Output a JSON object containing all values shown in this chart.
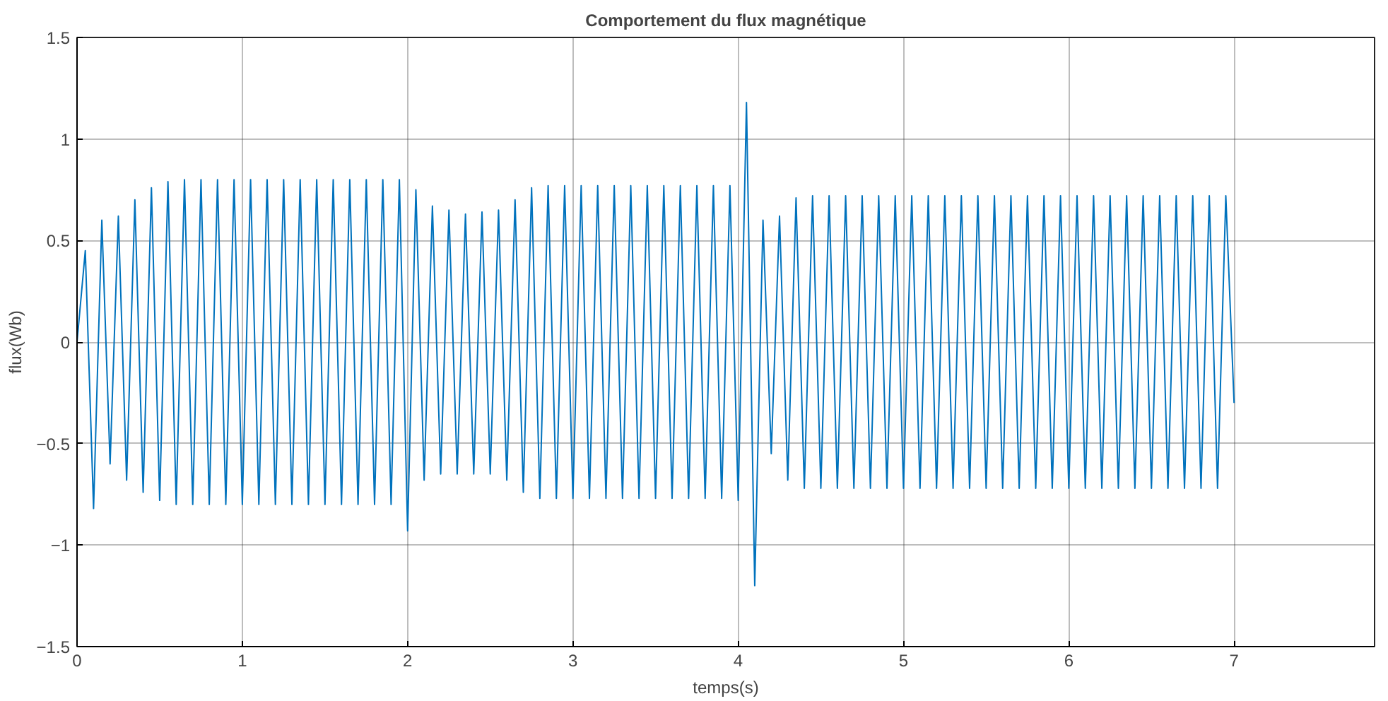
{
  "chart_data": {
    "type": "line",
    "title": "Comportement du flux magnétique",
    "xlabel": "temps(s)",
    "ylabel": "flux(Wb)",
    "xlim": [
      0,
      7.85
    ],
    "ylim": [
      -1.5,
      1.5
    ],
    "xticks": [
      0,
      1,
      2,
      3,
      4,
      5,
      6,
      7
    ],
    "yticks": [
      -1.5,
      -1,
      -0.5,
      0,
      0.5,
      1,
      1.5
    ],
    "grid": true,
    "line_style": "solid",
    "x": [
      0,
      0.05,
      0.1,
      0.15,
      0.2,
      0.25,
      0.3,
      0.35,
      0.4,
      0.45,
      0.5,
      0.55,
      0.6,
      0.65,
      0.7,
      0.75,
      0.8,
      0.85,
      0.9,
      0.95,
      1,
      1.05,
      1.1,
      1.15,
      1.2,
      1.25,
      1.3,
      1.35,
      1.4,
      1.45,
      1.5,
      1.55,
      1.6,
      1.65,
      1.7,
      1.75,
      1.8,
      1.85,
      1.9,
      1.95,
      2,
      2.05,
      2.1,
      2.15,
      2.2,
      2.25,
      2.3,
      2.35,
      2.4,
      2.45,
      2.5,
      2.55,
      2.6,
      2.65,
      2.7,
      2.75,
      2.8,
      2.85,
      2.9,
      2.95,
      3,
      3.05,
      3.1,
      3.15,
      3.2,
      3.25,
      3.3,
      3.35,
      3.4,
      3.45,
      3.5,
      3.55,
      3.6,
      3.65,
      3.7,
      3.75,
      3.8,
      3.85,
      3.9,
      3.95,
      4,
      4.05,
      4.1,
      4.15,
      4.2,
      4.25,
      4.3,
      4.35,
      4.4,
      4.45,
      4.5,
      4.55,
      4.6,
      4.65,
      4.7,
      4.75,
      4.8,
      4.85,
      4.9,
      4.95,
      5,
      5.05,
      5.1,
      5.15,
      5.2,
      5.25,
      5.3,
      5.35,
      5.4,
      5.45,
      5.5,
      5.55,
      5.6,
      5.65,
      5.7,
      5.75,
      5.8,
      5.85,
      5.9,
      5.95,
      6,
      6.05,
      6.1,
      6.15,
      6.2,
      6.25,
      6.3,
      6.35,
      6.4,
      6.45,
      6.5,
      6.55,
      6.6,
      6.65,
      6.7,
      6.75,
      6.8,
      6.85,
      6.9,
      6.95,
      7
    ],
    "series": [
      {
        "color": "#0072bd",
        "values": [
          0,
          0.45,
          -0.82,
          0.6,
          -0.6,
          0.62,
          -0.68,
          0.7,
          -0.74,
          0.76,
          -0.78,
          0.79,
          -0.8,
          0.8,
          -0.8,
          0.8,
          -0.8,
          0.8,
          -0.8,
          0.8,
          -0.8,
          0.8,
          -0.8,
          0.8,
          -0.8,
          0.8,
          -0.8,
          0.8,
          -0.8,
          0.8,
          -0.8,
          0.8,
          -0.8,
          0.8,
          -0.8,
          0.8,
          -0.8,
          0.8,
          -0.8,
          0.8,
          -0.93,
          0.75,
          -0.68,
          0.67,
          -0.65,
          0.65,
          -0.65,
          0.63,
          -0.65,
          0.64,
          -0.65,
          0.65,
          -0.68,
          0.7,
          -0.74,
          0.76,
          -0.77,
          0.77,
          -0.77,
          0.77,
          -0.77,
          0.77,
          -0.77,
          0.77,
          -0.77,
          0.77,
          -0.77,
          0.77,
          -0.77,
          0.77,
          -0.77,
          0.77,
          -0.77,
          0.77,
          -0.77,
          0.77,
          -0.77,
          0.77,
          -0.77,
          0.77,
          -0.78,
          1.18,
          -1.2,
          0.6,
          -0.55,
          0.62,
          -0.68,
          0.71,
          -0.72,
          0.72,
          -0.72,
          0.72,
          -0.72,
          0.72,
          -0.72,
          0.72,
          -0.72,
          0.72,
          -0.72,
          0.72,
          -0.72,
          0.72,
          -0.72,
          0.72,
          -0.72,
          0.72,
          -0.72,
          0.72,
          -0.72,
          0.72,
          -0.72,
          0.72,
          -0.72,
          0.72,
          -0.72,
          0.72,
          -0.72,
          0.72,
          -0.72,
          0.72,
          -0.72,
          0.72,
          -0.72,
          0.72,
          -0.72,
          0.72,
          -0.72,
          0.72,
          -0.72,
          0.72,
          -0.72,
          0.72,
          -0.72,
          0.72,
          -0.72,
          0.72,
          -0.72,
          0.72,
          -0.72,
          0.72,
          -0.3
        ]
      }
    ]
  }
}
